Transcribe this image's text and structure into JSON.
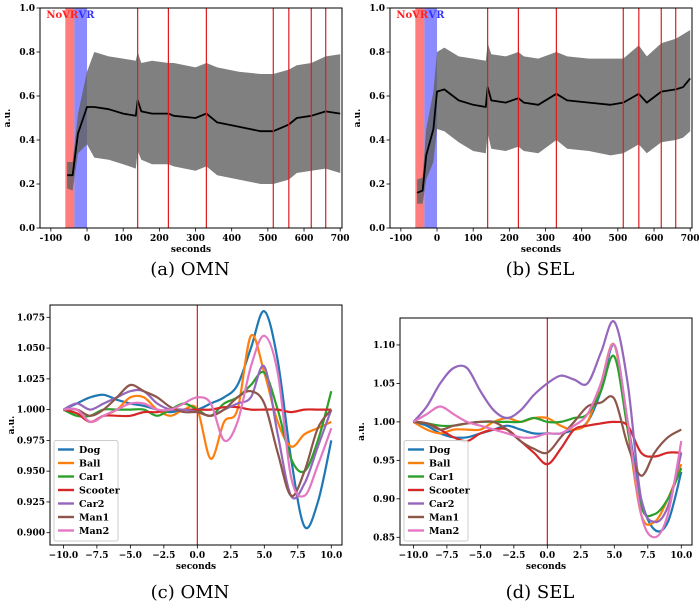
{
  "chart_data": [
    {
      "id": "a",
      "type": "area",
      "caption": "(a) OMN",
      "xlabel": "seconds",
      "ylabel": "a.u.",
      "xlim": [
        -130,
        705
      ],
      "ylim": [
        0.0,
        1.0
      ],
      "xticks": [
        -100,
        0,
        100,
        200,
        300,
        400,
        500,
        600,
        700
      ],
      "yticks": [
        0.0,
        0.2,
        0.4,
        0.6,
        0.8,
        1.0
      ],
      "regions": [
        {
          "label": "NoVR",
          "x0": -60,
          "x1": -35,
          "color": "#ff6666"
        },
        {
          "label": "VR",
          "x0": -35,
          "x1": 0,
          "color": "#7777ff"
        }
      ],
      "vlines": [
        140,
        225,
        330,
        515,
        558,
        620,
        660
      ],
      "series": [
        {
          "color": "#000000",
          "band_color": "#606060",
          "x": [
            -55,
            -40,
            -25,
            0,
            20,
            60,
            100,
            135,
            140,
            150,
            180,
            225,
            240,
            300,
            330,
            360,
            420,
            480,
            515,
            558,
            580,
            620,
            660,
            700
          ],
          "mean": [
            0.24,
            0.24,
            0.43,
            0.55,
            0.55,
            0.54,
            0.52,
            0.51,
            0.58,
            0.53,
            0.52,
            0.52,
            0.51,
            0.5,
            0.52,
            0.48,
            0.46,
            0.44,
            0.44,
            0.47,
            0.5,
            0.51,
            0.53,
            0.52
          ],
          "upper": [
            0.3,
            0.3,
            0.52,
            0.71,
            0.8,
            0.78,
            0.77,
            0.76,
            0.8,
            0.75,
            0.76,
            0.75,
            0.75,
            0.73,
            0.75,
            0.73,
            0.71,
            0.7,
            0.7,
            0.72,
            0.74,
            0.75,
            0.78,
            0.79
          ],
          "lower": [
            0.18,
            0.17,
            0.34,
            0.38,
            0.32,
            0.31,
            0.29,
            0.27,
            0.35,
            0.31,
            0.29,
            0.29,
            0.28,
            0.26,
            0.28,
            0.24,
            0.22,
            0.2,
            0.2,
            0.22,
            0.25,
            0.26,
            0.27,
            0.25
          ]
        }
      ]
    },
    {
      "id": "b",
      "type": "area",
      "caption": "(b) SEL",
      "xlabel": "seconds",
      "ylabel": "a.u.",
      "xlim": [
        -130,
        705
      ],
      "ylim": [
        0.0,
        1.0
      ],
      "xticks": [
        -100,
        0,
        100,
        200,
        300,
        400,
        500,
        600,
        700
      ],
      "yticks": [
        0.0,
        0.2,
        0.4,
        0.6,
        0.8,
        1.0
      ],
      "regions": [
        {
          "label": "NoVR",
          "x0": -60,
          "x1": -35,
          "color": "#ff6666"
        },
        {
          "label": "VR",
          "x0": -35,
          "x1": 0,
          "color": "#7777ff"
        }
      ],
      "vlines": [
        140,
        225,
        330,
        515,
        558,
        620,
        660
      ],
      "series": [
        {
          "color": "#000000",
          "band_color": "#606060",
          "x": [
            -55,
            -40,
            -30,
            -10,
            0,
            20,
            60,
            100,
            135,
            140,
            150,
            190,
            225,
            240,
            280,
            330,
            360,
            420,
            480,
            515,
            558,
            580,
            620,
            660,
            680,
            700
          ],
          "mean": [
            0.16,
            0.17,
            0.33,
            0.45,
            0.62,
            0.63,
            0.58,
            0.56,
            0.55,
            0.64,
            0.58,
            0.57,
            0.59,
            0.57,
            0.56,
            0.61,
            0.58,
            0.57,
            0.56,
            0.57,
            0.61,
            0.57,
            0.62,
            0.63,
            0.64,
            0.68
          ],
          "upper": [
            0.22,
            0.23,
            0.45,
            0.62,
            0.8,
            0.82,
            0.78,
            0.77,
            0.76,
            0.84,
            0.79,
            0.78,
            0.8,
            0.78,
            0.77,
            0.8,
            0.78,
            0.77,
            0.77,
            0.77,
            0.83,
            0.78,
            0.84,
            0.86,
            0.88,
            0.9
          ],
          "lower": [
            0.11,
            0.11,
            0.22,
            0.3,
            0.45,
            0.44,
            0.39,
            0.35,
            0.34,
            0.43,
            0.36,
            0.35,
            0.37,
            0.35,
            0.34,
            0.4,
            0.36,
            0.35,
            0.33,
            0.34,
            0.38,
            0.34,
            0.39,
            0.4,
            0.41,
            0.44
          ]
        }
      ]
    },
    {
      "id": "c",
      "type": "line",
      "caption": "(c) OMN",
      "xlabel": "seconds",
      "ylabel": "a.u.",
      "xlim": [
        -11,
        10.8
      ],
      "ylim": [
        0.89,
        1.085
      ],
      "xticks": [
        -10.0,
        -7.5,
        -5.0,
        -2.5,
        0.0,
        2.5,
        5.0,
        7.5,
        10.0
      ],
      "xtick_labels": [
        "−10.0",
        "−7.5",
        "−5.0",
        "−2.5",
        "0.0",
        "2.5",
        "5.0",
        "7.5",
        "10.0"
      ],
      "yticks": [
        0.9,
        0.925,
        0.95,
        0.975,
        1.0,
        1.025,
        1.05,
        1.075
      ],
      "ytick_labels": [
        "0.900",
        "0.925",
        "0.950",
        "0.975",
        "1.000",
        "1.025",
        "1.050",
        "1.075"
      ],
      "vlines": [
        0.0
      ],
      "legend": "lower-left",
      "x": [
        -10,
        -9,
        -8,
        -7,
        -6,
        -5,
        -4,
        -3,
        -2,
        -1,
        0,
        1,
        2,
        3,
        4,
        5,
        6,
        7,
        8,
        9,
        10
      ],
      "series": [
        {
          "name": "Dog",
          "color": "#1f77b4",
          "values": [
            1.0,
            1.005,
            1.01,
            1.012,
            1.008,
            1.005,
            1.003,
            1.0,
            0.998,
            1.0,
            1.0,
            1.005,
            1.01,
            1.02,
            1.05,
            1.08,
            1.04,
            0.96,
            0.905,
            0.925,
            0.975
          ]
        },
        {
          "name": "Ball",
          "color": "#ff7f0e",
          "values": [
            1.0,
            1.0,
            0.99,
            0.995,
            1.0,
            1.01,
            1.01,
            1.0,
            0.995,
            1.0,
            1.0,
            0.96,
            0.99,
            1.0,
            1.06,
            1.03,
            0.99,
            0.97,
            0.98,
            0.985,
            0.99
          ]
        },
        {
          "name": "Car1",
          "color": "#2ca02c",
          "values": [
            1.0,
            0.995,
            0.995,
            1.0,
            1.0,
            1.0,
            1.0,
            0.995,
            1.0,
            1.005,
            1.0,
            0.995,
            1.005,
            1.01,
            1.02,
            1.03,
            1.0,
            0.96,
            0.95,
            0.975,
            1.015
          ]
        },
        {
          "name": "Scooter",
          "color": "#d62728",
          "values": [
            1.0,
            0.997,
            0.99,
            0.995,
            0.995,
            0.995,
            0.998,
            0.998,
            1.0,
            1.0,
            1.0,
            1.0,
            1.002,
            1.002,
            1.0,
            1.0,
            1.0,
            0.998,
            1.0,
            1.0,
            1.0
          ]
        },
        {
          "name": "Car2",
          "color": "#9467bd",
          "values": [
            1.0,
            1.005,
            1.0,
            1.005,
            1.01,
            1.015,
            1.015,
            1.005,
            1.0,
            1.0,
            0.998,
            0.995,
            1.0,
            1.005,
            1.01,
            1.035,
            0.98,
            0.93,
            0.94,
            0.97,
            1.0
          ]
        },
        {
          "name": "Man1",
          "color": "#8c564b",
          "values": [
            1.0,
            1.0,
            0.995,
            1.0,
            1.01,
            1.02,
            1.015,
            1.01,
            1.002,
            0.998,
            0.998,
            0.995,
            1.0,
            1.01,
            1.015,
            1.005,
            0.965,
            0.93,
            0.95,
            0.985,
            1.0
          ]
        },
        {
          "name": "Man2",
          "color": "#e377c2",
          "values": [
            1.0,
            1.0,
            0.99,
            0.995,
            1.0,
            1.005,
            1.005,
            1.0,
            1.0,
            1.005,
            1.01,
            1.005,
            0.975,
            0.99,
            1.035,
            1.06,
            1.03,
            0.945,
            0.93,
            0.955,
            0.985
          ]
        }
      ]
    },
    {
      "id": "d",
      "type": "line",
      "caption": "(d) SEL",
      "xlabel": "seconds",
      "ylabel": "a.u.",
      "xlim": [
        -11,
        10.8
      ],
      "ylim": [
        0.84,
        1.135
      ],
      "xticks": [
        -10.0,
        -7.5,
        -5.0,
        -2.5,
        0.0,
        2.5,
        5.0,
        7.5,
        10.0
      ],
      "xtick_labels": [
        "−10.0",
        "−7.5",
        "−5.0",
        "−2.5",
        "0.0",
        "2.5",
        "5.0",
        "7.5",
        "10.0"
      ],
      "yticks": [
        0.85,
        0.9,
        0.95,
        1.0,
        1.05,
        1.1
      ],
      "ytick_labels": [
        "0.85",
        "0.90",
        "0.95",
        "1.00",
        "1.05",
        "1.10"
      ],
      "vlines": [
        0.0
      ],
      "legend": "lower-left",
      "x": [
        -10,
        -9,
        -8,
        -7,
        -6,
        -5,
        -4,
        -3,
        -2,
        -1,
        0,
        1,
        2,
        3,
        4,
        5,
        6,
        7,
        8,
        9,
        10
      ],
      "series": [
        {
          "name": "Dog",
          "color": "#1f77b4",
          "values": [
            1.0,
            0.995,
            0.985,
            0.98,
            0.98,
            0.985,
            0.99,
            0.995,
            0.99,
            0.985,
            0.985,
            0.985,
            0.99,
            1.0,
            1.04,
            1.1,
            1.0,
            0.9,
            0.86,
            0.87,
            0.935
          ]
        },
        {
          "name": "Ball",
          "color": "#ff7f0e",
          "values": [
            1.0,
            0.99,
            0.985,
            0.99,
            0.99,
            0.99,
            1.0,
            1.005,
            1.0,
            1.005,
            1.005,
            0.995,
            0.99,
            1.0,
            1.05,
            1.1,
            0.99,
            0.88,
            0.87,
            0.9,
            0.945
          ]
        },
        {
          "name": "Car1",
          "color": "#2ca02c",
          "values": [
            1.0,
            0.998,
            0.995,
            0.995,
            0.998,
            1.0,
            1.0,
            1.0,
            1.0,
            1.005,
            1.0,
            1.0,
            1.005,
            1.01,
            1.04,
            1.085,
            0.99,
            0.89,
            0.88,
            0.9,
            0.94
          ]
        },
        {
          "name": "Scooter",
          "color": "#d62728",
          "values": [
            1.0,
            0.998,
            0.99,
            0.98,
            0.975,
            0.985,
            0.99,
            0.99,
            0.975,
            0.96,
            0.945,
            0.965,
            0.99,
            0.995,
            0.998,
            1.0,
            0.995,
            0.96,
            0.955,
            0.96,
            0.96
          ]
        },
        {
          "name": "Car2",
          "color": "#9467bd",
          "values": [
            1.0,
            1.02,
            1.05,
            1.07,
            1.07,
            1.04,
            1.015,
            1.005,
            1.015,
            1.035,
            1.05,
            1.06,
            1.055,
            1.05,
            1.09,
            1.13,
            1.05,
            0.9,
            0.87,
            0.89,
            0.96
          ]
        },
        {
          "name": "Man1",
          "color": "#8c564b",
          "values": [
            1.0,
            0.998,
            0.99,
            0.995,
            0.998,
            1.0,
            1.0,
            0.99,
            0.975,
            0.965,
            0.96,
            0.98,
            1.0,
            1.02,
            1.025,
            1.03,
            0.97,
            0.93,
            0.96,
            0.98,
            0.99
          ]
        },
        {
          "name": "Man2",
          "color": "#e377c2",
          "values": [
            1.0,
            1.01,
            1.02,
            1.01,
            1.0,
            0.995,
            0.99,
            0.985,
            0.98,
            0.98,
            0.985,
            0.985,
            0.995,
            1.01,
            1.05,
            1.1,
            1.0,
            0.88,
            0.85,
            0.88,
            0.975
          ]
        }
      ]
    }
  ]
}
